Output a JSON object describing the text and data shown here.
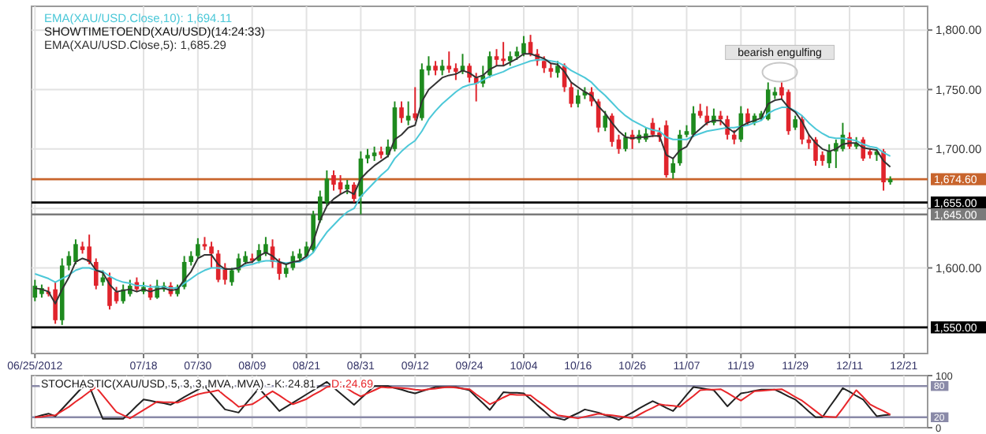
{
  "chart_data": [
    {
      "type": "candlestick",
      "legend": "top left",
      "grid": true,
      "categories": [
        "06/25/2012",
        null,
        null,
        null,
        null,
        null,
        null,
        null,
        null,
        null,
        null,
        null,
        null,
        null,
        null,
        null,
        "07/18",
        null,
        null,
        null,
        null,
        null,
        null,
        null,
        "07/30",
        null,
        null,
        null,
        null,
        null,
        null,
        null,
        "08/09",
        null,
        null,
        null,
        null,
        null,
        null,
        null,
        "08/21",
        null,
        null,
        null,
        null,
        null,
        null,
        null,
        "08/31",
        null,
        null,
        null,
        null,
        null,
        null,
        null,
        "09/12",
        null,
        null,
        null,
        null,
        null,
        null,
        null,
        "09/24",
        null,
        null,
        null,
        null,
        null,
        null,
        null,
        "10/04",
        null,
        null,
        null,
        null,
        null,
        null,
        null,
        "10/16",
        null,
        null,
        null,
        null,
        null,
        null,
        null,
        "10/26",
        null,
        null,
        null,
        null,
        null,
        null,
        null,
        "11/07",
        null,
        null,
        null,
        null,
        null,
        null,
        null,
        "11/19",
        null,
        null,
        null,
        null,
        null,
        null,
        null,
        "11/29",
        null,
        null,
        null,
        null,
        null,
        null,
        null,
        "12/11",
        null,
        null,
        null,
        null,
        null,
        null,
        null,
        "12/21",
        null,
        null,
        null
      ],
      "ylim": [
        1528,
        1820
      ],
      "yticks": [
        {
          "value": 1600,
          "label": "1,600.00"
        },
        {
          "value": 1650,
          "label": null
        },
        {
          "value": 1700,
          "label": "1,700.00"
        },
        {
          "value": 1750,
          "label": "1,750.00"
        },
        {
          "value": 1800,
          "label": "1,800.00"
        }
      ],
      "series": [
        {
          "ohlc": [
            [
              1575,
              1590,
              1572,
              1585
            ],
            [
              1578,
              1586,
              1575,
              1583
            ],
            [
              1580,
              1584,
              1576,
              1578
            ],
            [
              1582,
              1588,
              1553,
              1556
            ],
            [
              1556,
              1608,
              1552,
              1602
            ],
            [
              1602,
              1614,
              1598,
              1610
            ],
            [
              1605,
              1624,
              1603,
              1620
            ],
            [
              1618,
              1622,
              1612,
              1615
            ],
            [
              1618,
              1628,
              1603,
              1605
            ],
            [
              1605,
              1608,
              1582,
              1585
            ],
            [
              1588,
              1598,
              1585,
              1592
            ],
            [
              1592,
              1596,
              1565,
              1568
            ],
            [
              1580,
              1584,
              1570,
              1572
            ],
            [
              1572,
              1586,
              1570,
              1582
            ],
            [
              1578,
              1590,
              1576,
              1585
            ],
            [
              1588,
              1592,
              1580,
              1582
            ],
            [
              1580,
              1588,
              1578,
              1584
            ],
            [
              1583,
              1586,
              1573,
              1575
            ],
            [
              1575,
              1590,
              1574,
              1585
            ],
            [
              1582,
              1588,
              1580,
              1585
            ],
            [
              1585,
              1588,
              1576,
              1578
            ],
            [
              1578,
              1586,
              1576,
              1584
            ],
            [
              1584,
              1610,
              1582,
              1605
            ],
            [
              1605,
              1614,
              1602,
              1610
            ],
            [
              1610,
              1625,
              1608,
              1620
            ],
            [
              1620,
              1626,
              1615,
              1618
            ],
            [
              1618,
              1622,
              1600,
              1612
            ],
            [
              1612,
              1615,
              1588,
              1590
            ],
            [
              1600,
              1604,
              1586,
              1590
            ],
            [
              1588,
              1600,
              1585,
              1598
            ],
            [
              1598,
              1612,
              1596,
              1608
            ],
            [
              1605,
              1614,
              1603,
              1610
            ],
            [
              1608,
              1612,
              1604,
              1606
            ],
            [
              1606,
              1620,
              1604,
              1615
            ],
            [
              1612,
              1626,
              1610,
              1620
            ],
            [
              1618,
              1624,
              1600,
              1605
            ],
            [
              1605,
              1608,
              1590,
              1595
            ],
            [
              1595,
              1604,
              1592,
              1600
            ],
            [
              1600,
              1614,
              1598,
              1610
            ],
            [
              1608,
              1616,
              1605,
              1612
            ],
            [
              1610,
              1622,
              1608,
              1618
            ],
            [
              1615,
              1648,
              1613,
              1645
            ],
            [
              1640,
              1665,
              1638,
              1660
            ],
            [
              1655,
              1682,
              1652,
              1675
            ],
            [
              1678,
              1682,
              1665,
              1670
            ],
            [
              1672,
              1678,
              1662,
              1666
            ],
            [
              1666,
              1674,
              1662,
              1670
            ],
            [
              1670,
              1672,
              1655,
              1658
            ],
            [
              1660,
              1698,
              1645,
              1692
            ],
            [
              1692,
              1700,
              1688,
              1695
            ],
            [
              1694,
              1702,
              1690,
              1697
            ],
            [
              1698,
              1702,
              1692,
              1695
            ],
            [
              1695,
              1708,
              1693,
              1702
            ],
            [
              1700,
              1740,
              1698,
              1735
            ],
            [
              1735,
              1740,
              1722,
              1726
            ],
            [
              1724,
              1740,
              1720,
              1728
            ],
            [
              1730,
              1752,
              1724,
              1726
            ],
            [
              1726,
              1772,
              1724,
              1767
            ],
            [
              1766,
              1778,
              1762,
              1770
            ],
            [
              1770,
              1774,
              1762,
              1766
            ],
            [
              1766,
              1775,
              1762,
              1770
            ],
            [
              1770,
              1782,
              1764,
              1767
            ],
            [
              1768,
              1772,
              1758,
              1765
            ],
            [
              1765,
              1780,
              1763,
              1770
            ],
            [
              1770,
              1772,
              1756,
              1760
            ],
            [
              1760,
              1764,
              1740,
              1755
            ],
            [
              1755,
              1770,
              1752,
              1762
            ],
            [
              1762,
              1782,
              1760,
              1778
            ],
            [
              1778,
              1784,
              1770,
              1775
            ],
            [
              1776,
              1790,
              1770,
              1774
            ],
            [
              1774,
              1782,
              1770,
              1778
            ],
            [
              1778,
              1786,
              1775,
              1782
            ],
            [
              1780,
              1795,
              1778,
              1789
            ],
            [
              1790,
              1796,
              1778,
              1780
            ],
            [
              1780,
              1784,
              1770,
              1774
            ],
            [
              1774,
              1778,
              1764,
              1768
            ],
            [
              1768,
              1772,
              1760,
              1765
            ],
            [
              1764,
              1774,
              1760,
              1770
            ],
            [
              1770,
              1772,
              1748,
              1752
            ],
            [
              1752,
              1756,
              1735,
              1738
            ],
            [
              1738,
              1750,
              1735,
              1745
            ],
            [
              1745,
              1752,
              1742,
              1748
            ],
            [
              1748,
              1752,
              1736,
              1740
            ],
            [
              1740,
              1742,
              1714,
              1718
            ],
            [
              1718,
              1732,
              1715,
              1728
            ],
            [
              1728,
              1730,
              1702,
              1706
            ],
            [
              1708,
              1712,
              1696,
              1700
            ],
            [
              1700,
              1714,
              1698,
              1710
            ],
            [
              1712,
              1716,
              1700,
              1708
            ],
            [
              1708,
              1716,
              1705,
              1712
            ],
            [
              1708,
              1718,
              1706,
              1713
            ],
            [
              1722,
              1726,
              1710,
              1712
            ],
            [
              1714,
              1718,
              1706,
              1710
            ],
            [
              1720,
              1724,
              1676,
              1678
            ],
            [
              1680,
              1692,
              1675,
              1688
            ],
            [
              1688,
              1716,
              1686,
              1712
            ],
            [
              1712,
              1720,
              1710,
              1715
            ],
            [
              1712,
              1736,
              1710,
              1730
            ],
            [
              1732,
              1738,
              1726,
              1728
            ],
            [
              1728,
              1736,
              1720,
              1722
            ],
            [
              1722,
              1734,
              1720,
              1728
            ],
            [
              1728,
              1732,
              1720,
              1725
            ],
            [
              1725,
              1728,
              1708,
              1712
            ],
            [
              1712,
              1716,
              1704,
              1708
            ],
            [
              1708,
              1736,
              1706,
              1730
            ],
            [
              1730,
              1734,
              1720,
              1722
            ],
            [
              1722,
              1730,
              1720,
              1728
            ],
            [
              1726,
              1732,
              1724,
              1730
            ],
            [
              1725,
              1756,
              1724,
              1750
            ],
            [
              1745,
              1752,
              1742,
              1748
            ],
            [
              1752,
              1756,
              1742,
              1745
            ],
            [
              1748,
              1750,
              1712,
              1715
            ],
            [
              1718,
              1728,
              1716,
              1725
            ],
            [
              1725,
              1728,
              1704,
              1708
            ],
            [
              1708,
              1712,
              1700,
              1705
            ],
            [
              1708,
              1710,
              1686,
              1690
            ],
            [
              1695,
              1698,
              1686,
              1690
            ],
            [
              1688,
              1704,
              1684,
              1698
            ],
            [
              1698,
              1708,
              1684,
              1705
            ],
            [
              1700,
              1722,
              1698,
              1712
            ],
            [
              1710,
              1714,
              1700,
              1702
            ],
            [
              1702,
              1710,
              1700,
              1705
            ],
            [
              1708,
              1710,
              1690,
              1692
            ],
            [
              1698,
              1700,
              1692,
              1695
            ],
            [
              1695,
              1700,
              1690,
              1698
            ],
            [
              1698,
              1700,
              1665,
              1672
            ],
            [
              1672,
              1677,
              1670,
              1674.6
            ],
            null,
            null,
            null,
            null,
            null
          ]
        },
        {
          "type": "line",
          "name": "EMA(XAU/USD.Close,10): 1,694.11",
          "color": "#4cc8d8",
          "values": [
            1595,
            1593,
            1591,
            1588,
            1591,
            1594,
            1598,
            1600,
            1600,
            1598,
            1597,
            1593,
            1590,
            1588,
            1587,
            1585,
            1585,
            1584,
            1584,
            1584,
            1583,
            1583,
            1587,
            1591,
            1595,
            1598,
            1600,
            1600,
            1599,
            1599,
            1600,
            1602,
            1603,
            1605,
            1606,
            1606,
            1605,
            1604,
            1605,
            1605,
            1608,
            1613,
            1622,
            1630,
            1636,
            1642,
            1647,
            1650,
            1660,
            1666,
            1672,
            1678,
            1683,
            1692,
            1698,
            1703,
            1707,
            1715,
            1725,
            1732,
            1738,
            1743,
            1748,
            1752,
            1754,
            1755,
            1758,
            1761,
            1763,
            1765,
            1768,
            1770,
            1772,
            1774,
            1775,
            1775,
            1774,
            1773,
            1770,
            1766,
            1763,
            1760,
            1756,
            1750,
            1745,
            1739,
            1733,
            1728,
            1724,
            1721,
            1718,
            1716,
            1715,
            1710,
            1708,
            1708,
            1708,
            1711,
            1713,
            1715,
            1716,
            1717,
            1718,
            1718,
            1719,
            1720,
            1722,
            1724,
            1730,
            1733,
            1735,
            1735,
            1732,
            1728,
            1722,
            1717,
            1713,
            1710,
            1709,
            1709,
            1708,
            1707,
            1704,
            1702,
            1701,
            1697,
            1694,
            null,
            null,
            null,
            null,
            null
          ]
        },
        {
          "type": "line",
          "name": "EMA(XAU/USD.Close,5): 1,685.29",
          "color": "#333333",
          "values": [
            1583,
            1582,
            1580,
            1570,
            1582,
            1592,
            1605,
            1608,
            1606,
            1598,
            1596,
            1586,
            1580,
            1581,
            1582,
            1580,
            1582,
            1580,
            1582,
            1583,
            1581,
            1582,
            1590,
            1597,
            1608,
            1611,
            1611,
            1603,
            1599,
            1599,
            1600,
            1604,
            1605,
            1610,
            1613,
            1610,
            1605,
            1603,
            1605,
            1606,
            1610,
            1622,
            1640,
            1652,
            1658,
            1662,
            1665,
            1662,
            1675,
            1681,
            1686,
            1690,
            1694,
            1708,
            1712,
            1718,
            1720,
            1740,
            1750,
            1755,
            1760,
            1762,
            1763,
            1766,
            1764,
            1760,
            1762,
            1767,
            1770,
            1770,
            1773,
            1776,
            1780,
            1780,
            1778,
            1776,
            1772,
            1771,
            1765,
            1756,
            1752,
            1748,
            1745,
            1736,
            1730,
            1722,
            1715,
            1710,
            1709,
            1710,
            1710,
            1711,
            1711,
            1695,
            1692,
            1699,
            1702,
            1712,
            1717,
            1722,
            1724,
            1724,
            1718,
            1714,
            1719,
            1722,
            1724,
            1726,
            1738,
            1741,
            1742,
            1735,
            1731,
            1723,
            1712,
            1705,
            1700,
            1698,
            1700,
            1704,
            1705,
            1705,
            1701,
            1700,
            1699,
            1690,
            1685,
            null,
            null,
            null,
            null,
            null
          ]
        }
      ],
      "ref_lines": [
        {
          "axis": "y",
          "value": 1674.6,
          "label": "1,674.60",
          "color": "#c8642c"
        },
        {
          "axis": "y",
          "value": 1655,
          "label": "1,655.00",
          "color": "#000000"
        },
        {
          "axis": "y",
          "value": 1645,
          "label": "1,645.00",
          "color": "#7a7a7a"
        },
        {
          "axis": "y",
          "value": 1550,
          "label": "1,550.00",
          "color": "#000000"
        }
      ],
      "annotations": [
        "SHOWTIMETOEND(XAU/USD)(14:24:33)",
        {
          "text": "bearish engulfing",
          "y": 1762
        }
      ]
    },
    {
      "type": "line",
      "title": "STOCHASTIC(XAU/USD, 5, 3, 3, MVA, MVA) -",
      "legend": "top",
      "tick_labels": "y",
      "grid": "x",
      "categories": [
        null,
        null,
        null,
        null,
        null,
        null,
        null,
        null,
        null,
        null,
        null,
        null,
        null,
        null,
        null,
        null,
        null,
        null,
        null,
        null,
        null,
        null,
        null,
        null,
        null,
        null,
        null,
        null,
        null,
        null,
        null,
        null,
        null,
        null,
        null,
        null,
        null,
        null,
        null,
        null,
        null,
        null,
        null,
        null,
        null,
        null,
        null,
        null,
        null,
        null,
        null,
        null,
        null,
        null,
        null,
        null,
        null,
        null,
        null,
        null,
        null,
        null,
        null,
        null,
        null,
        null,
        null,
        null,
        null,
        null,
        null,
        null,
        null,
        null,
        null,
        null,
        null,
        null,
        null,
        null,
        null,
        null,
        null,
        null,
        null,
        null,
        null,
        null,
        null,
        null,
        null,
        null,
        null,
        null,
        null,
        null,
        null,
        null,
        null,
        null,
        null,
        null,
        null,
        null,
        null,
        null,
        null,
        null,
        null,
        null,
        null,
        null,
        null,
        null,
        null,
        null,
        null,
        null,
        null,
        null,
        null,
        null,
        null,
        null,
        null,
        null,
        null,
        null,
        null,
        null,
        null,
        null
      ],
      "ylim": [
        0,
        100
      ],
      "yticks": [
        0,
        100
      ],
      "series": [
        {
          "name": "K: 24.81",
          "color": "#222222",
          "values": [
            20,
            24,
            27,
            22,
            36,
            50,
            64,
            78,
            80,
            48,
            17,
            17,
            17,
            17,
            29,
            42,
            54,
            52,
            49,
            47,
            44,
            51,
            59,
            66,
            73,
            80,
            65,
            50,
            35,
            32,
            29,
            45,
            60,
            76,
            61,
            47,
            32,
            40,
            48,
            56,
            64,
            72,
            80,
            88,
            77,
            66,
            55,
            44,
            56,
            68,
            80,
            80,
            80,
            76,
            73,
            69,
            66,
            70,
            74,
            78,
            78,
            78,
            78,
            75,
            72,
            59,
            47,
            34,
            51,
            68,
            67,
            67,
            66,
            55,
            43,
            32,
            20,
            18,
            15,
            22,
            28,
            35,
            32,
            29,
            24,
            20,
            15,
            22,
            29,
            37,
            44,
            51,
            45,
            38,
            32,
            47,
            63,
            78,
            76,
            74,
            72,
            57,
            41,
            54,
            66,
            68,
            71,
            73,
            73,
            73,
            67,
            60,
            54,
            43,
            31,
            20,
            20,
            39,
            57,
            76,
            69,
            61,
            54,
            38,
            22,
            24,
            25,
            null,
            null,
            null,
            null,
            null
          ]
        },
        {
          "name": "D: 24.69",
          "color": "#e8262a",
          "values": [
            20,
            21,
            23,
            24,
            32,
            40,
            50,
            59,
            69,
            78,
            62,
            46,
            30,
            24,
            18,
            26,
            34,
            42,
            50,
            49,
            49,
            48,
            53,
            59,
            64,
            67,
            69,
            72,
            61,
            51,
            40,
            43,
            45,
            53,
            62,
            70,
            62,
            53,
            45,
            50,
            55,
            63,
            70,
            78,
            80,
            82,
            75,
            67,
            60,
            66,
            72,
            78,
            77,
            77,
            76,
            75,
            73,
            72,
            74,
            75,
            77,
            78,
            77,
            75,
            74,
            64,
            55,
            45,
            51,
            58,
            64,
            63,
            63,
            62,
            52,
            43,
            33,
            24,
            22,
            20,
            18,
            21,
            24,
            27,
            25,
            24,
            22,
            20,
            18,
            25,
            32,
            38,
            45,
            43,
            42,
            40,
            51,
            61,
            72,
            73,
            73,
            74,
            67,
            59,
            52,
            61,
            70,
            71,
            72,
            73,
            74,
            67,
            59,
            52,
            42,
            32,
            22,
            21,
            20,
            37,
            55,
            72,
            59,
            45,
            38,
            32,
            25,
            null,
            null,
            null,
            null,
            null
          ]
        }
      ],
      "ref_lines": [
        {
          "axis": "y",
          "value": 80,
          "label": "80",
          "color": "#8a8aa8"
        },
        {
          "axis": "y",
          "value": 20,
          "label": "20",
          "color": "#8a8aa8"
        }
      ]
    }
  ]
}
